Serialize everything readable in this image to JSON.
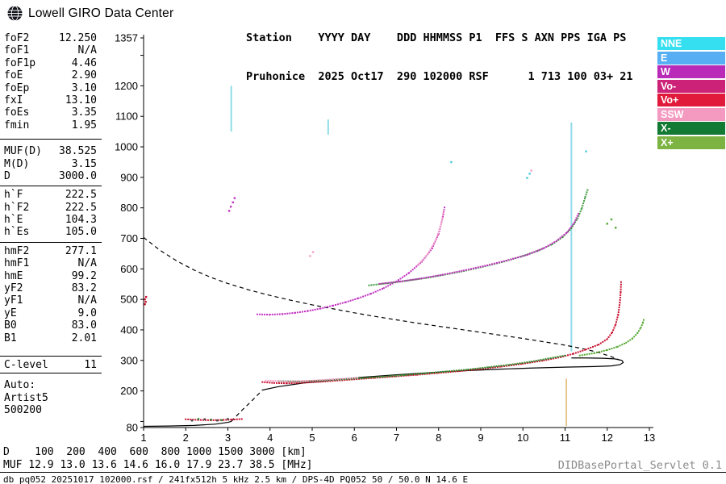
{
  "brand": {
    "name": "Lowell GIRO Data Center"
  },
  "header": {
    "line1": "Station    YYYY DAY    DDD HHMMSS P1  FFS S AXN PPS IGA PS",
    "line2": "Pruhonice  2025 Oct17  290 102000 RSF      1 713 100 03+ 21"
  },
  "params": {
    "groups": [
      {
        "rows": [
          [
            "foF2",
            "12.250"
          ],
          [
            "foF1",
            "N/A"
          ],
          [
            "foF1p",
            "4.46"
          ],
          [
            "foE",
            "2.90"
          ],
          [
            "foEp",
            "3.10"
          ],
          [
            "fxI",
            "13.10"
          ],
          [
            "foEs",
            "3.35"
          ],
          [
            "fmin",
            "1.95"
          ]
        ]
      },
      {
        "rows": [
          [
            "MUF(D)",
            "38.525"
          ],
          [
            "M(D)",
            "3.15"
          ],
          [
            "D",
            "3000.0"
          ]
        ]
      },
      {
        "rows": [
          [
            "h`F",
            "222.5"
          ],
          [
            "h`F2",
            "222.5"
          ],
          [
            "h`E",
            "104.3"
          ],
          [
            "h`Es",
            "105.0"
          ]
        ]
      },
      {
        "rows": [
          [
            "hmF2",
            "277.1"
          ],
          [
            "hmF1",
            "N/A"
          ],
          [
            "hmE",
            "99.2"
          ],
          [
            "yF2",
            "83.2"
          ],
          [
            "yF1",
            "N/A"
          ],
          [
            "yE",
            "9.0"
          ],
          [
            "B0",
            "83.0"
          ],
          [
            "B1",
            "2.01"
          ]
        ]
      },
      {
        "rows": [
          [
            "C-level",
            "11"
          ]
        ]
      },
      {
        "rows": [
          [
            "Auto:",
            ""
          ],
          [
            "Artist5",
            ""
          ],
          [
            "500200",
            ""
          ]
        ]
      }
    ]
  },
  "legend": {
    "items": [
      {
        "label": "NNE",
        "color": "#35dff0"
      },
      {
        "label": "E",
        "color": "#57aef2"
      },
      {
        "label": "W",
        "color": "#b92ab9"
      },
      {
        "label": "Vo-",
        "color": "#cc2277"
      },
      {
        "label": "Vo+",
        "color": "#e11a3c"
      },
      {
        "label": "SSW",
        "color": "#f49ac1"
      },
      {
        "label": "X-",
        "color": "#127a32"
      },
      {
        "label": "X+",
        "color": "#7cb342"
      }
    ]
  },
  "footer": {
    "d_line": "D    100  200  400  600  800 1000 1500 3000 [km]",
    "muf_line": "MUF 12.9 13.0 13.6 14.6 16.0 17.9 23.7 38.5 [MHz]",
    "servlet": "DIDBasePortal_Servlet 0.1",
    "status": "db pq052 20251017 102000.rsf / 241fx512h 5 kHz 2.5 km / DPS-4D PQ052 50 / 50.0 N 14.6 E"
  },
  "chart_data": {
    "type": "scatter",
    "x_unit": "MHz",
    "y_unit": "km",
    "xlim": [
      1,
      13
    ],
    "ylim": [
      80,
      1357
    ],
    "xticks": [
      1,
      2,
      3,
      4,
      5,
      6,
      7,
      8,
      9,
      10,
      11,
      12,
      13
    ],
    "ytick_labels": [
      1357,
      1200,
      1100,
      1000,
      900,
      800,
      700,
      600,
      500,
      400,
      300,
      200,
      80
    ],
    "series": [
      {
        "name": "vertical-marker-cyan",
        "color": "#8fdce9",
        "style": "line",
        "w": 2,
        "points": [
          [
            11.15,
            330
          ],
          [
            11.15,
            1080
          ]
        ]
      },
      {
        "name": "cyan-segment-1",
        "color": "#8fdce9",
        "style": "line",
        "w": 2,
        "points": [
          [
            3.08,
            1050
          ],
          [
            3.08,
            1200
          ]
        ]
      },
      {
        "name": "cyan-segment-2",
        "color": "#8fdce9",
        "style": "line",
        "w": 2,
        "points": [
          [
            5.38,
            1040
          ],
          [
            5.38,
            1090
          ]
        ]
      },
      {
        "name": "vertical-marker-orange",
        "color": "#e0b46a",
        "style": "line",
        "w": 1.5,
        "points": [
          [
            11.03,
            85
          ],
          [
            11.03,
            240
          ]
        ]
      },
      {
        "name": "muf-transmission-curve",
        "color": "#000000",
        "style": "dash",
        "points": [
          [
            1.0,
            703
          ],
          [
            1.4,
            660
          ],
          [
            1.8,
            625
          ],
          [
            2.2,
            596
          ],
          [
            2.6,
            572
          ],
          [
            3.0,
            552
          ],
          [
            3.5,
            531
          ],
          [
            4.0,
            513
          ],
          [
            4.5,
            497
          ],
          [
            5.0,
            482
          ],
          [
            5.5,
            469
          ],
          [
            6.0,
            456
          ],
          [
            6.5,
            444
          ],
          [
            7.0,
            433
          ],
          [
            7.5,
            422
          ],
          [
            8.0,
            412
          ],
          [
            8.5,
            402
          ],
          [
            9.0,
            392
          ],
          [
            9.5,
            382
          ],
          [
            10.0,
            372
          ],
          [
            10.5,
            361
          ],
          [
            11.0,
            350
          ],
          [
            11.4,
            339
          ],
          [
            11.8,
            326
          ],
          [
            12.1,
            312
          ],
          [
            12.3,
            301
          ]
        ]
      },
      {
        "name": "profile-e-region",
        "color": "#000000",
        "style": "line",
        "points": [
          [
            1.0,
            84
          ],
          [
            1.6,
            85
          ],
          [
            2.2,
            87
          ],
          [
            2.7,
            91
          ],
          [
            3.0,
            97
          ],
          [
            3.08,
            100
          ]
        ]
      },
      {
        "name": "profile-valley",
        "color": "#000000",
        "style": "dash",
        "points": [
          [
            3.08,
            100
          ],
          [
            3.3,
            132
          ],
          [
            3.55,
            165
          ],
          [
            3.75,
            193
          ],
          [
            3.82,
            203
          ]
        ]
      },
      {
        "name": "profile-f-region",
        "color": "#000000",
        "style": "line",
        "points": [
          [
            3.82,
            203
          ],
          [
            4.2,
            214
          ],
          [
            4.8,
            226
          ],
          [
            5.5,
            236
          ],
          [
            6.2,
            245
          ],
          [
            7.0,
            253
          ],
          [
            7.8,
            260
          ],
          [
            8.6,
            266
          ],
          [
            9.4,
            271
          ],
          [
            10.2,
            275
          ],
          [
            11.0,
            278
          ],
          [
            11.7,
            280
          ],
          [
            12.1,
            282
          ],
          [
            12.3,
            286
          ],
          [
            12.38,
            293
          ],
          [
            12.35,
            300
          ],
          [
            12.18,
            305
          ],
          [
            11.9,
            307
          ],
          [
            11.5,
            308
          ],
          [
            11.15,
            308
          ]
        ]
      },
      {
        "name": "second-hop-magenta",
        "color": "#c233c2",
        "style": "dots",
        "points": [
          [
            3.7,
            451
          ],
          [
            4.0,
            450
          ],
          [
            4.3,
            452
          ],
          [
            4.6,
            456
          ],
          [
            4.9,
            462
          ],
          [
            5.2,
            470
          ],
          [
            5.5,
            480
          ],
          [
            5.8,
            491
          ],
          [
            6.1,
            504
          ],
          [
            6.4,
            519
          ],
          [
            6.7,
            537
          ],
          [
            7.0,
            559
          ],
          [
            7.3,
            587
          ],
          [
            7.6,
            623
          ],
          [
            7.85,
            668
          ],
          [
            8.0,
            715
          ],
          [
            8.1,
            770
          ],
          [
            8.14,
            802
          ]
        ]
      },
      {
        "name": "second-hop-pink",
        "color": "#f2a0c8",
        "style": "dots",
        "points": [
          [
            7.5,
            612
          ],
          [
            7.75,
            650
          ],
          [
            7.95,
            700
          ],
          [
            8.07,
            752
          ],
          [
            8.13,
            795
          ]
        ]
      },
      {
        "name": "upper-multiple-green",
        "color": "#3f9b3f",
        "style": "dots",
        "points": [
          [
            6.35,
            546
          ],
          [
            6.8,
            553
          ],
          [
            7.25,
            561
          ],
          [
            7.7,
            570
          ],
          [
            8.15,
            581
          ],
          [
            8.6,
            593
          ],
          [
            9.05,
            607
          ],
          [
            9.5,
            622
          ],
          [
            9.95,
            640
          ],
          [
            10.35,
            659
          ],
          [
            10.7,
            681
          ],
          [
            10.95,
            705
          ],
          [
            11.15,
            733
          ],
          [
            11.3,
            766
          ],
          [
            11.4,
            800
          ],
          [
            11.48,
            836
          ],
          [
            11.55,
            865
          ]
        ]
      },
      {
        "name": "upper-multiple-magenta",
        "color": "#c233c2",
        "style": "dots",
        "points": [
          [
            6.6,
            551
          ],
          [
            7.1,
            559
          ],
          [
            7.6,
            569
          ],
          [
            8.1,
            581
          ],
          [
            8.6,
            595
          ],
          [
            9.1,
            610
          ],
          [
            9.6,
            627
          ],
          [
            10.1,
            646
          ],
          [
            10.5,
            668
          ],
          [
            10.8,
            692
          ],
          [
            11.05,
            720
          ],
          [
            11.22,
            752
          ],
          [
            11.33,
            785
          ]
        ]
      },
      {
        "name": "es-trace",
        "color": "#c8102e",
        "style": "dots",
        "points": [
          [
            2.0,
            107
          ],
          [
            2.3,
            105
          ],
          [
            2.6,
            104
          ],
          [
            2.9,
            105
          ],
          [
            3.1,
            106
          ],
          [
            3.35,
            108
          ]
        ]
      },
      {
        "name": "es-specks-dark",
        "color": "#444444",
        "style": "pts",
        "points": [
          [
            2.15,
            103
          ],
          [
            2.45,
            107
          ],
          [
            2.75,
            103
          ],
          [
            3.0,
            108
          ]
        ]
      },
      {
        "name": "es-specks-green",
        "color": "#2e8b2e",
        "style": "pts",
        "points": [
          [
            2.3,
            108
          ],
          [
            2.6,
            106
          ],
          [
            2.85,
            104
          ]
        ]
      },
      {
        "name": "f-trace-ordinary",
        "color": "#c8102e",
        "style": "dots",
        "points": [
          [
            3.82,
            229
          ],
          [
            4.1,
            226
          ],
          [
            4.4,
            225
          ],
          [
            4.8,
            227
          ],
          [
            5.2,
            230
          ],
          [
            5.6,
            234
          ],
          [
            6.0,
            238
          ],
          [
            6.5,
            243
          ],
          [
            7.0,
            248
          ],
          [
            7.5,
            253
          ],
          [
            8.0,
            259
          ],
          [
            8.5,
            265
          ],
          [
            9.0,
            272
          ],
          [
            9.5,
            280
          ],
          [
            10.0,
            289
          ],
          [
            10.5,
            300
          ],
          [
            10.9,
            311
          ],
          [
            11.2,
            322
          ],
          [
            11.5,
            336
          ],
          [
            11.8,
            352
          ],
          [
            12.0,
            370
          ],
          [
            12.12,
            392
          ],
          [
            12.2,
            418
          ],
          [
            12.26,
            450
          ],
          [
            12.3,
            490
          ],
          [
            12.32,
            525
          ],
          [
            12.33,
            558
          ]
        ]
      },
      {
        "name": "f-trace-green-mix",
        "color": "#2e8b2e",
        "style": "dots",
        "points": [
          [
            4.2,
            232
          ],
          [
            4.7,
            231
          ],
          [
            5.2,
            234
          ],
          [
            5.7,
            238
          ],
          [
            6.2,
            242
          ],
          [
            6.7,
            247
          ],
          [
            7.2,
            252
          ],
          [
            7.7,
            258
          ],
          [
            8.2,
            264
          ],
          [
            8.7,
            270
          ],
          [
            9.2,
            278
          ],
          [
            9.7,
            286
          ],
          [
            10.2,
            296
          ],
          [
            10.6,
            306
          ],
          [
            11.0,
            316
          ]
        ]
      },
      {
        "name": "f-trace-pink-mix",
        "color": "#f2a0c8",
        "style": "dots",
        "points": [
          [
            3.9,
            234
          ],
          [
            4.4,
            231
          ],
          [
            4.9,
            233
          ],
          [
            5.5,
            238
          ],
          [
            6.1,
            243
          ]
        ]
      },
      {
        "name": "x-trace",
        "color": "#55a832",
        "style": "dots",
        "points": [
          [
            11.35,
            316
          ],
          [
            11.7,
            324
          ],
          [
            12.0,
            334
          ],
          [
            12.25,
            345
          ],
          [
            12.45,
            358
          ],
          [
            12.6,
            372
          ],
          [
            12.72,
            390
          ],
          [
            12.8,
            408
          ],
          [
            12.85,
            425
          ],
          [
            12.88,
            440
          ]
        ]
      },
      {
        "name": "noise-red-left",
        "color": "#c8102e",
        "style": "pts",
        "points": [
          [
            1.03,
            500
          ],
          [
            1.05,
            492
          ],
          [
            1.03,
            484
          ],
          [
            1.06,
            508
          ]
        ]
      },
      {
        "name": "noise-magenta",
        "color": "#c233c2",
        "style": "pts",
        "points": [
          [
            3.03,
            790
          ],
          [
            3.07,
            804
          ],
          [
            3.12,
            818
          ],
          [
            3.16,
            832
          ]
        ]
      },
      {
        "name": "noise-cyan",
        "color": "#49c8dc",
        "style": "pts",
        "points": [
          [
            8.3,
            950
          ],
          [
            10.1,
            898
          ],
          [
            10.16,
            912
          ],
          [
            11.5,
            985
          ]
        ]
      },
      {
        "name": "noise-pink",
        "color": "#f2a0c8",
        "style": "pts",
        "points": [
          [
            4.95,
            642
          ],
          [
            5.02,
            655
          ],
          [
            10.2,
            922
          ]
        ]
      },
      {
        "name": "noise-green",
        "color": "#55a832",
        "style": "pts",
        "points": [
          [
            12.0,
            748
          ],
          [
            12.1,
            762
          ],
          [
            12.2,
            735
          ]
        ]
      }
    ]
  }
}
